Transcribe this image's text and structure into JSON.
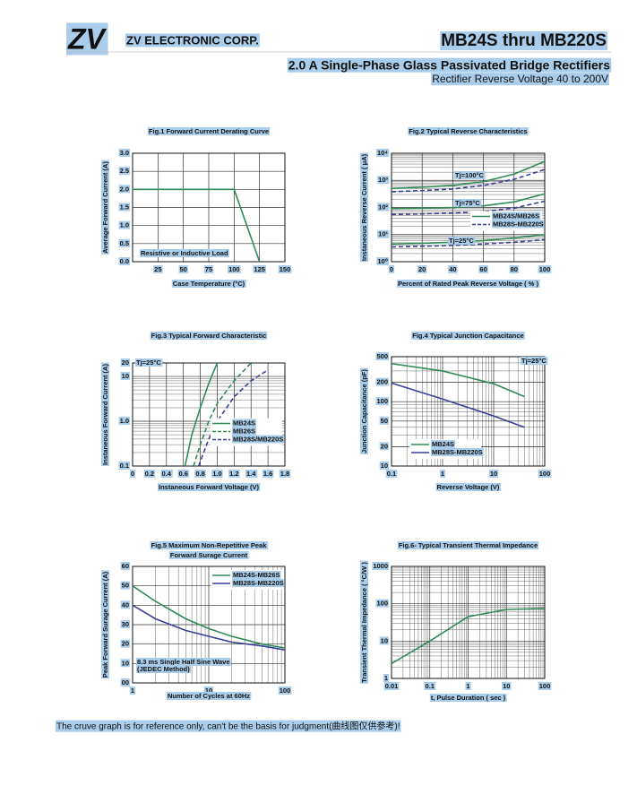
{
  "header": {
    "logo": "ZV",
    "company": "ZV ELECTRONIC CORP.",
    "part": "MB24S thru MB220S",
    "title": "2.0  A Single-Phase Glass Passivated Bridge Rectifiers",
    "subtitle": "Rectifier Reverse Voltage 40 to 200V"
  },
  "chart_data": [
    {
      "type": "line",
      "title": "Fig.1  Forward Current Derating Curve",
      "x_label": "Case Temperature (°C)",
      "y_label": "Average Forward Current (A)",
      "xlim": [
        0,
        150
      ],
      "xticks": [
        25,
        50,
        75,
        100,
        125,
        150
      ],
      "ylim": [
        0,
        3
      ],
      "yticks": [
        {
          "value": 0,
          "label": "0.0"
        },
        0.5,
        {
          "value": 1,
          "label": "1.0"
        },
        1.5,
        {
          "value": 2,
          "label": "2.0"
        },
        2.5,
        {
          "value": 3,
          "label": "3.0"
        }
      ],
      "grid": true,
      "series": [
        {
          "color": "#2e8b57",
          "x": [
            0,
            100,
            125
          ],
          "values": [
            2,
            2,
            0
          ]
        }
      ],
      "annotations": [
        "Resistive or Inductive Load"
      ]
    },
    {
      "type": "line",
      "title": "Fig.2  Typical Reverse Characteristics",
      "x_label": "Percent of Rated Peak Reverse Voltage ( % )",
      "y_label": "Instaneous Reverse Current ( μA)",
      "xlim": [
        0,
        100
      ],
      "xticks": [
        0,
        20,
        40,
        60,
        80,
        100
      ],
      "ylog": true,
      "ylim": [
        1,
        10000
      ],
      "yticks": [
        {
          "value": 1,
          "label": "10⁰"
        },
        {
          "value": 10,
          "label": "10¹"
        },
        {
          "value": 100,
          "label": "10²"
        },
        {
          "value": 1000,
          "label": "10³"
        },
        {
          "value": 10000,
          "label": "10⁴"
        }
      ],
      "grid": true,
      "legend": "center right",
      "series": [
        {
          "name": "MB24S/MB26S",
          "color": "#2e8b57",
          "x": [
            0,
            20,
            40,
            60,
            80,
            100
          ],
          "values": [
            500,
            560,
            650,
            900,
            1700,
            5000
          ]
        },
        {
          "name": "MB28S-MB220S",
          "color": "#3a3f9a",
          "dash": true,
          "x": [
            0,
            20,
            40,
            60,
            80,
            100
          ],
          "values": [
            380,
            420,
            480,
            650,
            1100,
            2500
          ]
        },
        {
          "color": "#2e8b57",
          "x": [
            0,
            20,
            40,
            60,
            80,
            100
          ],
          "values": [
            90,
            95,
            100,
            115,
            160,
            320
          ]
        },
        {
          "color": "#3a3f9a",
          "dash": true,
          "x": [
            0,
            20,
            40,
            60,
            80,
            100
          ],
          "values": [
            55,
            58,
            62,
            70,
            95,
            170
          ]
        },
        {
          "color": "#2e8b57",
          "x": [
            0,
            20,
            40,
            60,
            80,
            100
          ],
          "values": [
            4.5,
            4.8,
            5.2,
            6,
            7.5,
            10
          ]
        },
        {
          "color": "#3a3f9a",
          "dash": true,
          "x": [
            0,
            20,
            40,
            60,
            80,
            100
          ],
          "values": [
            3.5,
            3.7,
            4,
            4.5,
            5.2,
            6.5
          ]
        }
      ],
      "annotations": [
        "Tj=100°C",
        "Tj=75°C",
        "Tj=25°C"
      ]
    },
    {
      "type": "line",
      "title": "Fig.3  Typical Forward Characteristic",
      "x_label": "Instaneous Forward Voltage (V)",
      "y_label": "Instaneous Forward Current  (A)",
      "xlim": [
        0,
        1.8
      ],
      "xticks": [
        0,
        0.2,
        0.4,
        0.6,
        0.8,
        {
          "value": 1,
          "label": "1.0"
        },
        1.2,
        1.4,
        1.6,
        1.8
      ],
      "ylog": true,
      "ylim": [
        0.1,
        20
      ],
      "yticks": [
        0.1,
        {
          "value": 1,
          "label": "1.0"
        },
        10,
        20
      ],
      "grid": true,
      "legend": "center right",
      "series": [
        {
          "name": "MB24S",
          "color": "#2e8b57",
          "x": [
            0.62,
            0.7,
            0.8,
            0.9,
            1.0
          ],
          "values": [
            0.1,
            0.5,
            2,
            7,
            20
          ]
        },
        {
          "name": "MB26S",
          "color": "#2e8b57",
          "dash": true,
          "x": [
            0.72,
            0.8,
            0.9,
            1.0,
            1.2,
            1.4
          ],
          "values": [
            0.1,
            0.3,
            1,
            2.5,
            8,
            20
          ]
        },
        {
          "name": "MB28S/MB220S",
          "color": "#3a3f9a",
          "dash": true,
          "x": [
            0.78,
            0.9,
            1.0,
            1.2,
            1.4,
            1.6
          ],
          "values": [
            0.1,
            0.4,
            1,
            3.5,
            8,
            14
          ]
        }
      ],
      "annotations": [
        "Tj=25°C"
      ]
    },
    {
      "type": "line",
      "title": "Fig.4  Typical Junction Capacitance",
      "x_label": "Reverse  Voltage (V)",
      "y_label": "Junction Capacitance (pF)",
      "xlog": true,
      "xlim": [
        0.1,
        100
      ],
      "xticks": [
        0.1,
        1,
        10,
        100
      ],
      "ylog": true,
      "ylim": [
        10,
        500
      ],
      "yticks": [
        10,
        20,
        50,
        100,
        200,
        500
      ],
      "grid": true,
      "legend": "lower left",
      "series": [
        {
          "name": "MB24S",
          "color": "#2e8b57",
          "x": [
            0.1,
            1,
            10,
            40
          ],
          "values": [
            390,
            300,
            190,
            120
          ]
        },
        {
          "name": "MB28S-MB220S",
          "color": "#3a3f9a",
          "x": [
            0.1,
            1,
            10,
            40
          ],
          "values": [
            195,
            110,
            60,
            40
          ]
        }
      ],
      "annotations": [
        "Tj=25°C"
      ]
    },
    {
      "type": "line",
      "title": [
        "Fig.5  Maximum Non-Repetitive Peak",
        "Forward Surage Current"
      ],
      "x_label": "Number of Cycles at 60Hz",
      "y_label": "Peak Forward Surage Current (A)",
      "xlog": true,
      "xlim": [
        1,
        100
      ],
      "xticks": [
        1,
        10,
        100
      ],
      "ylim": [
        0,
        60
      ],
      "yticks": [
        {
          "value": 0,
          "label": "00"
        },
        10,
        20,
        30,
        40,
        50,
        60
      ],
      "grid": true,
      "legend": "upper right",
      "series": [
        {
          "name": "MB24S-MB26S",
          "color": "#2e8b57",
          "x": [
            1,
            2,
            5,
            10,
            20,
            50,
            100
          ],
          "values": [
            50,
            42,
            33,
            28,
            24,
            20,
            18
          ]
        },
        {
          "name": "MB28S-MB220S",
          "color": "#3a3f9a",
          "x": [
            1,
            2,
            5,
            10,
            20,
            50,
            100
          ],
          "values": [
            40,
            33,
            27,
            24,
            21,
            19,
            17
          ]
        }
      ],
      "annotations": [
        "8.3 ms Single Half Sine Wave",
        "(JEDEC Method)"
      ]
    },
    {
      "type": "line",
      "title": "Fig.6- Typical Transient Thermal Impedance",
      "x_label": "t, Pulse Duration ( sec )",
      "y_label": "Transient Thermal Impedance ( °C/W )",
      "xlog": true,
      "xlim": [
        0.01,
        100
      ],
      "xticks": [
        0.01,
        0.1,
        1,
        10,
        100
      ],
      "ylog": true,
      "ylim": [
        1,
        1000
      ],
      "yticks": [
        1,
        10,
        100,
        1000
      ],
      "grid": true,
      "series": [
        {
          "color": "#2e8b57",
          "x": [
            0.01,
            0.1,
            1,
            10,
            100
          ],
          "values": [
            2.5,
            10,
            45,
            70,
            75
          ]
        }
      ]
    }
  ],
  "footer": "The cruve graph is for reference only, can't be the basis for judgment(曲线图仅供参考)!"
}
